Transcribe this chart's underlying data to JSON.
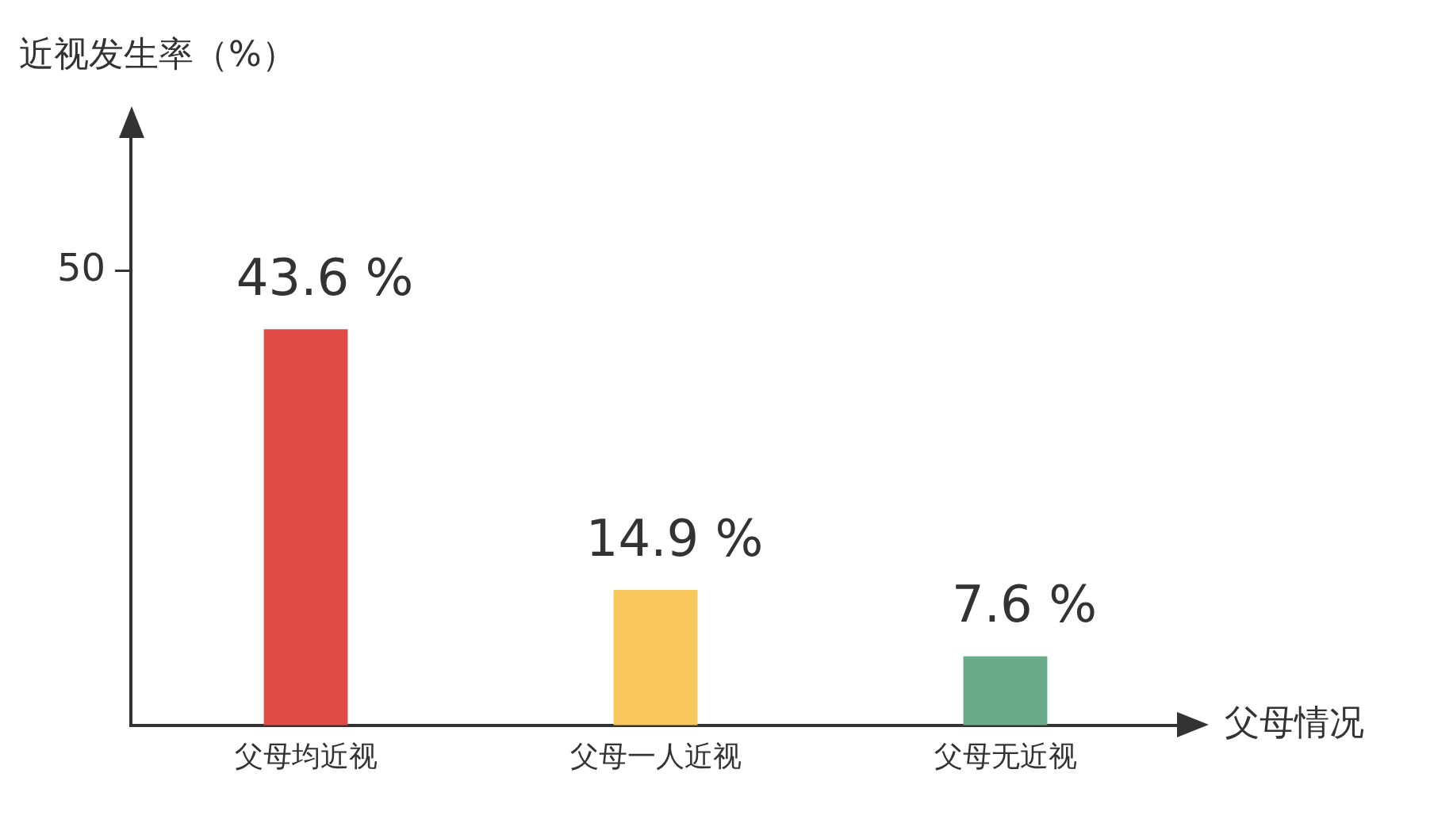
{
  "chart_data": {
    "type": "bar",
    "ylabel": "近视发生率（%）",
    "xlabel": "父母情况",
    "categories": [
      "父母均近视",
      "父母一人近视",
      "父母无近视"
    ],
    "values": [
      43.6,
      14.9,
      7.6
    ],
    "colors": [
      "#e14b45",
      "#f7c65c",
      "#6aab8c"
    ],
    "value_labels": [
      "43.6 %",
      "14.9 %",
      "7.6 %"
    ],
    "ylim": [
      0,
      65
    ],
    "yticks": [
      50
    ],
    "grid": false,
    "legend": false
  }
}
